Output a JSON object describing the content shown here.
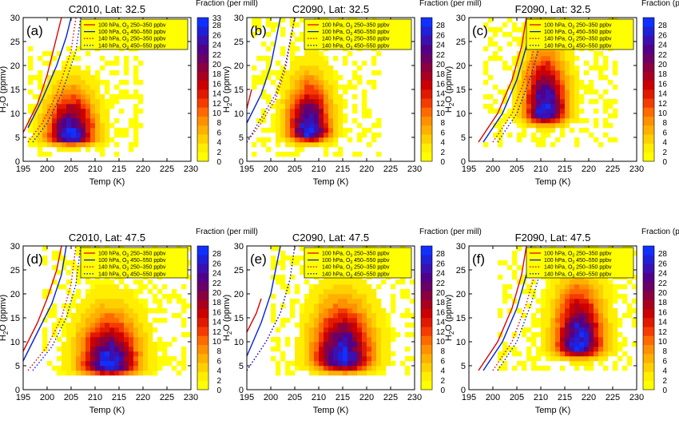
{
  "shared": {
    "type": "heatmap",
    "xlabel": "Temp (K)",
    "ylabel_main": "H",
    "ylabel_sub": "2",
    "ylabel_rest": "O (ppmv)",
    "colorbar_title": "Fraction (per mill)",
    "xlim": [
      195,
      230
    ],
    "ylim": [
      0,
      30
    ],
    "xticks": [
      "195",
      "200",
      "205",
      "210",
      "215",
      "220",
      "225",
      "230"
    ],
    "yticks": [
      "0",
      "5",
      "10",
      "15",
      "20",
      "25",
      "30"
    ],
    "cbar_ticks": [
      "0",
      "2",
      "4",
      "6",
      "8",
      "10",
      "12",
      "14",
      "16",
      "18",
      "20",
      "22",
      "24",
      "26",
      "28"
    ],
    "legend": [
      {
        "pre": "100 hPa, O",
        "sub": "3",
        "post": " 250–350 ppbv",
        "color": "#e00000",
        "style": "solid"
      },
      {
        "pre": "100 hPa, O",
        "sub": "3",
        "post": " 450–550 ppbv",
        "color": "#0022dd",
        "style": "solid"
      },
      {
        "pre": "140 hPa, O",
        "sub": "3",
        "post": " 250–350 ppbv",
        "color": "#e00000",
        "style": "dotted"
      },
      {
        "pre": "140 hPa, O",
        "sub": "3",
        "post": " 450–550 ppbv",
        "color": "#0022dd",
        "style": "dotted"
      }
    ],
    "colors": {
      "scale": [
        "#ffff00",
        "#ffee00",
        "#ffd000",
        "#ffb000",
        "#ff9000",
        "#ff6a00",
        "#f53c00",
        "#e01a00",
        "#cc0000",
        "#aa0020",
        "#8a0040",
        "#6a0068",
        "#52008a",
        "#3c10b0",
        "#2020d8",
        "#1030ff"
      ]
    }
  },
  "chart_data": [
    {
      "label": "(a)",
      "title": "C2010, Lat: 32.5",
      "cbar_max": "33",
      "core": [
        205,
        5
      ],
      "spread": [
        4.5,
        3.2
      ],
      "upward": 0.55,
      "extent": [
        196,
        220,
        1,
        24
      ],
      "curves": {
        "red_solid": [
          [
            195,
            6
          ],
          [
            198,
            12
          ],
          [
            200,
            18
          ],
          [
            202,
            26
          ],
          [
            203,
            30
          ]
        ],
        "blue_solid": [
          [
            196,
            7
          ],
          [
            199,
            13
          ],
          [
            202,
            20
          ],
          [
            204,
            26
          ],
          [
            205,
            30
          ]
        ],
        "red_dotted": [
          [
            196,
            4
          ],
          [
            199,
            8
          ],
          [
            202,
            14
          ],
          [
            205,
            23
          ],
          [
            206,
            30
          ]
        ],
        "blue_dotted": [
          [
            197,
            4
          ],
          [
            200,
            8
          ],
          [
            203,
            14
          ],
          [
            206,
            23
          ],
          [
            207,
            30
          ]
        ]
      }
    },
    {
      "label": "(b)",
      "title": "C2090, Lat: 32.5",
      "cbar_max": "",
      "core": [
        208,
        6
      ],
      "spread": [
        4.0,
        4.0
      ],
      "upward": 0.45,
      "extent": [
        196,
        223,
        1,
        30
      ],
      "curves": {
        "red_solid": [
          [
            195,
            11
          ],
          [
            196,
            15
          ]
        ],
        "blue_solid": [
          [
            195,
            8
          ],
          [
            198,
            14
          ],
          [
            200,
            20
          ],
          [
            201,
            25
          ],
          [
            202,
            30
          ]
        ],
        "red_dotted": [
          [
            195,
            4
          ],
          [
            198,
            8
          ],
          [
            201,
            13
          ],
          [
            203,
            19
          ],
          [
            205,
            30
          ]
        ],
        "blue_dotted": [
          [
            195,
            4
          ],
          [
            198,
            9
          ],
          [
            201,
            14
          ],
          [
            203,
            20
          ],
          [
            205,
            30
          ]
        ]
      }
    },
    {
      "label": "(c)",
      "title": "F2090, Lat: 32.5",
      "cbar_max": "",
      "core": [
        211,
        10
      ],
      "spread": [
        4.0,
        4.5
      ],
      "upward": 0.5,
      "extent": [
        198,
        226,
        3,
        30
      ],
      "curves": {
        "red_solid": [
          [
            197,
            4
          ],
          [
            201,
            10
          ],
          [
            204,
            17
          ],
          [
            206,
            24
          ],
          [
            207,
            30
          ]
        ],
        "blue_solid": [
          [
            198,
            4
          ],
          [
            202,
            10
          ],
          [
            205,
            17
          ],
          [
            207,
            24
          ],
          [
            208,
            30
          ]
        ],
        "red_dotted": [
          [
            200,
            4
          ],
          [
            204,
            10
          ],
          [
            207,
            18
          ],
          [
            209,
            25
          ],
          [
            210,
            30
          ]
        ],
        "blue_dotted": [
          [
            201,
            4
          ],
          [
            205,
            10
          ],
          [
            208,
            18
          ],
          [
            210,
            25
          ],
          [
            211,
            30
          ]
        ]
      }
    },
    {
      "label": "(d)",
      "title": "C2010, Lat: 47.5",
      "cbar_max": "",
      "core": [
        213,
        5
      ],
      "spread": [
        5.5,
        4.0
      ],
      "upward": 0.45,
      "extent": [
        199,
        230,
        3,
        30
      ],
      "curves": {
        "red_solid": [
          [
            195,
            8
          ],
          [
            198,
            14
          ],
          [
            200,
            19
          ],
          [
            202,
            25
          ],
          [
            203,
            30
          ]
        ],
        "blue_solid": [
          [
            195,
            6
          ],
          [
            198,
            12
          ],
          [
            201,
            18
          ],
          [
            203,
            24
          ],
          [
            204,
            30
          ]
        ],
        "red_dotted": [
          [
            196,
            4
          ],
          [
            200,
            9
          ],
          [
            203,
            15
          ],
          [
            205,
            22
          ],
          [
            206,
            30
          ]
        ],
        "blue_dotted": [
          [
            197,
            4
          ],
          [
            201,
            9
          ],
          [
            204,
            15
          ],
          [
            206,
            22
          ],
          [
            207,
            30
          ]
        ]
      }
    },
    {
      "label": "(e)",
      "title": "C2090, Lat: 47.5",
      "cbar_max": "",
      "core": [
        215,
        6
      ],
      "spread": [
        5.5,
        4.5
      ],
      "upward": 0.45,
      "extent": [
        200,
        230,
        3,
        30
      ],
      "curves": {
        "red_solid": [
          [
            195,
            12
          ],
          [
            197,
            16
          ],
          [
            198,
            19
          ]
        ],
        "blue_solid": [
          [
            195,
            7
          ],
          [
            198,
            14
          ],
          [
            200,
            20
          ],
          [
            201,
            25
          ],
          [
            202,
            30
          ]
        ],
        "red_dotted": [
          [
            195,
            4
          ],
          [
            199,
            10
          ],
          [
            202,
            16
          ],
          [
            204,
            23
          ],
          [
            205,
            30
          ]
        ],
        "blue_dotted": [
          [
            195,
            4
          ],
          [
            199,
            10
          ],
          [
            202,
            16
          ],
          [
            204,
            23
          ],
          [
            205,
            30
          ]
        ]
      }
    },
    {
      "label": "(f)",
      "title": "F2090, Lat: 47.5",
      "cbar_max": "",
      "core": [
        218,
        9
      ],
      "spread": [
        4.5,
        4.5
      ],
      "upward": 0.5,
      "extent": [
        201,
        230,
        4,
        30
      ],
      "curves": {
        "red_solid": [
          [
            197,
            4
          ],
          [
            201,
            10
          ],
          [
            204,
            17
          ],
          [
            206,
            24
          ],
          [
            207,
            30
          ]
        ],
        "blue_solid": [
          [
            198,
            4
          ],
          [
            202,
            10
          ],
          [
            205,
            17
          ],
          [
            207,
            24
          ],
          [
            208,
            30
          ]
        ],
        "red_dotted": [
          [
            200,
            4
          ],
          [
            204,
            10
          ],
          [
            207,
            18
          ],
          [
            209,
            25
          ],
          [
            210,
            30
          ]
        ],
        "blue_dotted": [
          [
            201,
            4
          ],
          [
            205,
            10
          ],
          [
            208,
            18
          ],
          [
            210,
            25
          ],
          [
            211,
            30
          ]
        ]
      }
    }
  ]
}
